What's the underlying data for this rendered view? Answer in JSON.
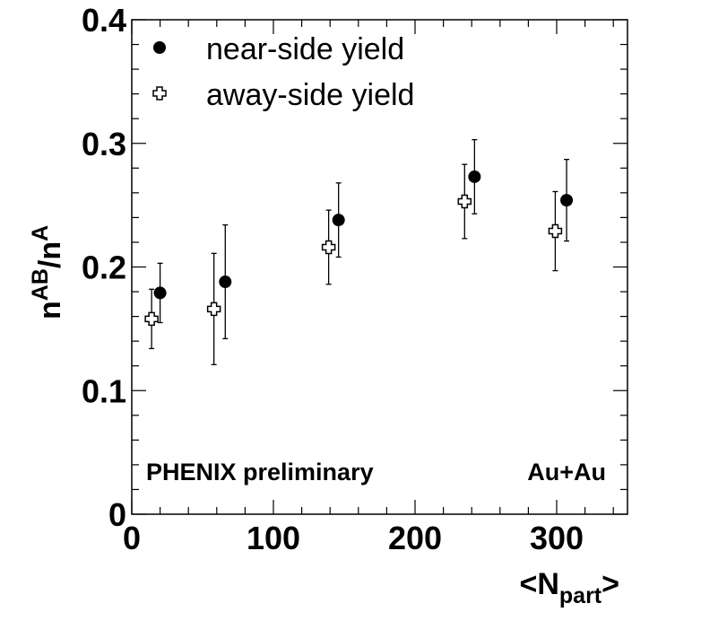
{
  "chart_data": {
    "type": "scatter",
    "xlabel_main": "<N",
    "xlabel_sub": "part",
    "xlabel_end": ">",
    "ylabel_n1": "n",
    "ylabel_sup1": "AB",
    "ylabel_slash": "/n",
    "ylabel_sup2": "A",
    "xlim": [
      0,
      350
    ],
    "ylim": [
      0,
      0.4
    ],
    "x_ticks": [
      0,
      100,
      200,
      300
    ],
    "x_tick_labels": [
      "0",
      "100",
      "200",
      "300"
    ],
    "y_ticks": [
      0,
      0.1,
      0.2,
      0.3,
      0.4
    ],
    "y_tick_labels": [
      "0",
      "0.1",
      "0.2",
      "0.3",
      "0.4"
    ],
    "legend_position": "top-left",
    "grid": false,
    "series": [
      {
        "name": "near-side yield",
        "marker": "filled-circle",
        "color": "#000000",
        "points": [
          {
            "x": 20,
            "y": 0.179,
            "err_low": 0.024,
            "err_high": 0.024
          },
          {
            "x": 66,
            "y": 0.188,
            "err_low": 0.046,
            "err_high": 0.046
          },
          {
            "x": 146,
            "y": 0.238,
            "err_low": 0.03,
            "err_high": 0.03
          },
          {
            "x": 242,
            "y": 0.273,
            "err_low": 0.03,
            "err_high": 0.03
          },
          {
            "x": 307,
            "y": 0.254,
            "err_low": 0.033,
            "err_high": 0.033
          }
        ]
      },
      {
        "name": "away-side yield",
        "marker": "open-cross",
        "color": "#000000",
        "points": [
          {
            "x": 14,
            "y": 0.158,
            "err_low": 0.024,
            "err_high": 0.024
          },
          {
            "x": 58,
            "y": 0.166,
            "err_low": 0.045,
            "err_high": 0.045
          },
          {
            "x": 139,
            "y": 0.216,
            "err_low": 0.03,
            "err_high": 0.03
          },
          {
            "x": 235,
            "y": 0.253,
            "err_low": 0.03,
            "err_high": 0.03
          },
          {
            "x": 299,
            "y": 0.229,
            "err_low": 0.032,
            "err_high": 0.032
          }
        ]
      }
    ],
    "annotations": {
      "left": "PHENIX preliminary",
      "right": "Au+Au"
    }
  }
}
